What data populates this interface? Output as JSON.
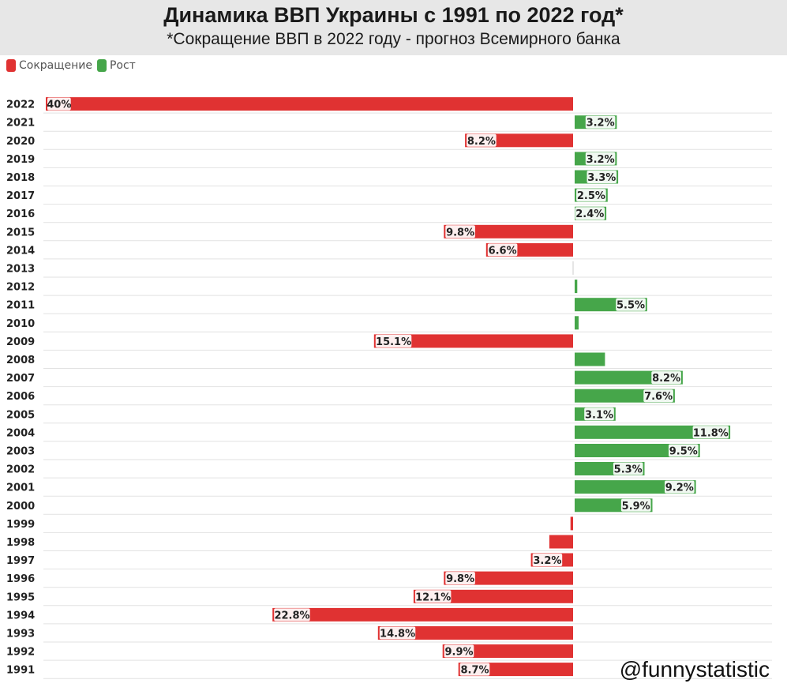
{
  "title": "Динамика ВВП Украины с 1991 по 2022 год*",
  "subtitle": "*Сокращение ВВП в 2022 году - прогноз Всемирного банка",
  "legend": {
    "decline_label": "Сокращение",
    "growth_label": "Рост"
  },
  "colors": {
    "decline": "#e03232",
    "growth": "#46a64a",
    "grid": "#e2e2e2",
    "axis_text": "#222222"
  },
  "watermark": "@funnystatistic",
  "chart_data": {
    "type": "bar",
    "orientation": "horizontal",
    "title": "Динамика ВВП Украины с 1991 по 2022 год*",
    "subtitle": "*Сокращение ВВП в 2022 году - прогноз Всемирного банка",
    "xlim": [
      -40,
      15
    ],
    "grid": true,
    "legend_position": "top-left",
    "categories": [
      "2022",
      "2021",
      "2020",
      "2019",
      "2018",
      "2017",
      "2016",
      "2015",
      "2014",
      "2013",
      "2012",
      "2011",
      "2010",
      "2009",
      "2008",
      "2007",
      "2006",
      "2005",
      "2004",
      "2003",
      "2002",
      "2001",
      "2000",
      "1999",
      "1998",
      "1997",
      "1996",
      "1995",
      "1994",
      "1993",
      "1992",
      "1991"
    ],
    "values": [
      -40,
      3.2,
      -8.2,
      3.2,
      3.3,
      2.5,
      2.4,
      -9.8,
      -6.6,
      0,
      0.2,
      5.5,
      0.3,
      -15.1,
      2.3,
      8.2,
      7.6,
      3.1,
      11.8,
      9.5,
      5.3,
      9.2,
      5.9,
      -0.2,
      -1.8,
      -3.2,
      -9.8,
      -12.1,
      -22.8,
      -14.8,
      -9.9,
      -8.7
    ],
    "labels": [
      "40%",
      "3.2%",
      "8.2%",
      "3.2%",
      "3.3%",
      "2.5%",
      "2.4%",
      "9.8%",
      "6.6%",
      "",
      "",
      "5.5%",
      "",
      "15.1%",
      "",
      "8.2%",
      "7.6%",
      "3.1%",
      "11.8%",
      "9.5%",
      "5.3%",
      "9.2%",
      "5.9%",
      "",
      "",
      "3.2%",
      "9.8%",
      "12.1%",
      "22.8%",
      "14.8%",
      "9.9%",
      "8.7%"
    ],
    "series": [
      {
        "name": "Сокращение",
        "sign": "negative"
      },
      {
        "name": "Рост",
        "sign": "positive"
      }
    ]
  }
}
